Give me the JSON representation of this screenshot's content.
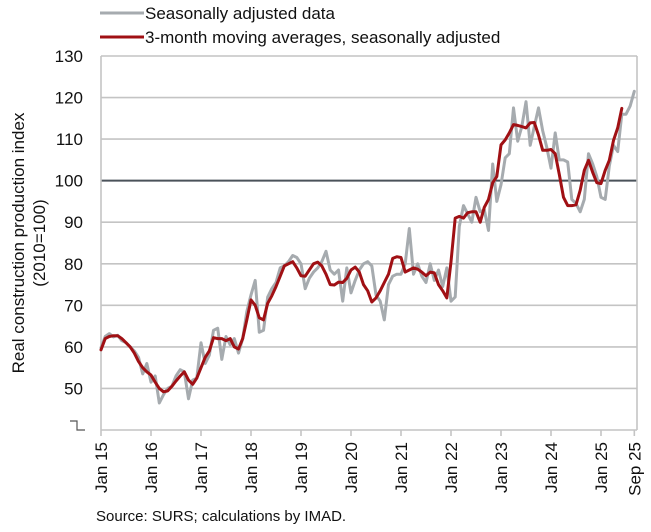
{
  "chart_data": {
    "type": "line",
    "title": "",
    "ylabel": "Real construction production index (2010=100)",
    "ylabel_lines": [
      "Real construction production index",
      "(2010=100)"
    ],
    "xlabel": "",
    "ylim": [
      40,
      130
    ],
    "yticks": [
      50,
      60,
      70,
      80,
      90,
      100,
      110,
      120,
      130
    ],
    "axis_break": true,
    "reference_line": 100,
    "grid": true,
    "legend_position": "top-left",
    "x_start": "2015-01",
    "x_end": "2025-09",
    "xtick_labels": [
      {
        "label": "Jan 15",
        "month_index": 0
      },
      {
        "label": "Jan 16",
        "month_index": 12
      },
      {
        "label": "Jan 17",
        "month_index": 24
      },
      {
        "label": "Jan 18",
        "month_index": 36
      },
      {
        "label": "Jan 19",
        "month_index": 48
      },
      {
        "label": "Jan 20",
        "month_index": 60
      },
      {
        "label": "Jan 21",
        "month_index": 72
      },
      {
        "label": "Jan 22",
        "month_index": 84
      },
      {
        "label": "Jan 23",
        "month_index": 96
      },
      {
        "label": "Jan 24",
        "month_index": 108
      },
      {
        "label": "Jan 25",
        "month_index": 120
      },
      {
        "label": "Sep 25",
        "month_index": 128
      }
    ],
    "series": [
      {
        "name": "Seasonally adjusted data",
        "color": "#a6abaf",
        "values": [
          59.8,
          62.5,
          63.2,
          62.4,
          62.8,
          61.5,
          61.0,
          60.0,
          59.0,
          57.5,
          53.5,
          56.0,
          51.5,
          53.0,
          46.5,
          48.5,
          50.0,
          50.5,
          53.0,
          54.5,
          54.0,
          47.5,
          52.0,
          52.5,
          61.0,
          56.0,
          58.0,
          64.0,
          64.5,
          57.0,
          62.5,
          60.5,
          62.0,
          58.5,
          62.0,
          68.5,
          72.5,
          76.0,
          63.5,
          64.0,
          72.0,
          74.0,
          75.5,
          79.0,
          79.5,
          80.5,
          82.0,
          81.5,
          80.0,
          74.0,
          76.5,
          78.0,
          79.0,
          80.5,
          83.0,
          78.5,
          77.5,
          78.5,
          71.0,
          79.0,
          73.0,
          76.0,
          78.5,
          80.0,
          80.5,
          79.5,
          72.5,
          71.0,
          66.5,
          75.0,
          77.0,
          77.5,
          77.5,
          80.0,
          88.5,
          77.5,
          80.0,
          77.0,
          75.5,
          80.0,
          76.0,
          78.5,
          74.5,
          79.0,
          71.0,
          72.0,
          89.0,
          94.0,
          92.0,
          90.0,
          96.0,
          92.5,
          93.0,
          88.0,
          104.0,
          95.0,
          99.0,
          105.5,
          106.5,
          117.5,
          109.5,
          113.0,
          119.0,
          108.5,
          113.0,
          117.5,
          112.0,
          108.0,
          103.0,
          111.5,
          105.0,
          105.0,
          104.5,
          95.5,
          94.5,
          92.5,
          95.5,
          106.5,
          104.0,
          101.0,
          96.0,
          95.5,
          103.5,
          108.5,
          107.0,
          116.0,
          116.0,
          118.0,
          121.5
        ]
      },
      {
        "name": "3-month moving averages, seasonally adjusted",
        "color": "#a01014",
        "values": [
          59.3,
          62.0,
          62.5,
          62.7,
          62.7,
          62.0,
          61.0,
          60.0,
          58.5,
          56.5,
          55.0,
          54.0,
          53.2,
          51.5,
          50.0,
          49.2,
          49.4,
          50.5,
          51.8,
          53.0,
          54.0,
          52.0,
          51.0,
          52.5,
          55.0,
          57.5,
          59.0,
          62.2,
          62.0,
          62.0,
          61.5,
          62.0,
          60.0,
          59.5,
          62.0,
          66.5,
          71.3,
          70.0,
          67.0,
          66.5,
          70.5,
          72.3,
          74.5,
          77.0,
          79.5,
          80.0,
          80.5,
          79.0,
          77.1,
          77.0,
          78.5,
          80.0,
          80.4,
          79.5,
          77.5,
          75.0,
          74.9,
          75.6,
          75.5,
          76.5,
          78.5,
          79.2,
          78.0,
          75.0,
          73.5,
          70.8,
          71.8,
          73.5,
          75.5,
          77.5,
          81.3,
          81.7,
          81.5,
          78.0,
          78.5,
          79.0,
          78.7,
          78.0,
          77.1,
          78.0,
          77.8,
          75.0,
          73.5,
          71.8,
          80.5,
          91.0,
          91.4,
          91.0,
          92.3,
          92.5,
          92.5,
          90.0,
          93.6,
          95.5,
          99.5,
          101.0,
          108.6,
          109.8,
          111.5,
          113.5,
          113.3,
          113.0,
          112.7,
          113.9,
          114.0,
          111.0,
          107.3,
          107.3,
          107.5,
          106.5,
          101.5,
          96.0,
          94.0,
          94.0,
          94.2,
          97.7,
          102.5,
          104.9,
          102.0,
          99.5,
          99.3,
          102.5,
          104.9,
          109.7,
          112.7,
          117.4
        ]
      }
    ]
  },
  "legend": {
    "items": [
      {
        "label": "Seasonally adjusted data",
        "color": "#a6abaf"
      },
      {
        "label": "3-month moving averages, seasonally adjusted",
        "color": "#a01014"
      }
    ]
  },
  "source_note": "Source: SURS; calculations by IMAD."
}
